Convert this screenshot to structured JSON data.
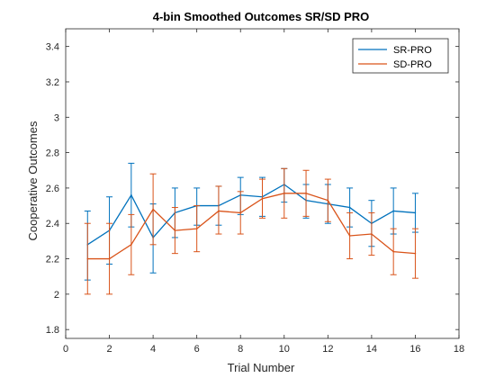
{
  "chart_data": {
    "type": "line",
    "title": "4-bin Smoothed Outcomes SR/SD PRO",
    "xlabel": "Trial Number",
    "ylabel": "Cooperative Outcomes",
    "xlim": [
      0,
      18
    ],
    "ylim": [
      1.75,
      3.5
    ],
    "xticks": [
      0,
      2,
      4,
      6,
      8,
      10,
      12,
      14,
      16,
      18
    ],
    "yticks": [
      1.8,
      2,
      2.2,
      2.4,
      2.6,
      2.8,
      3,
      3.2,
      3.4
    ],
    "xtick_labels": [
      "0",
      "2",
      "4",
      "6",
      "8",
      "10",
      "12",
      "14",
      "16",
      "18"
    ],
    "ytick_labels": [
      "1.8",
      "2",
      "2.2",
      "2.4",
      "2.6",
      "2.8",
      "3",
      "3.2",
      "3.4"
    ],
    "grid": false,
    "legend_position": "top-right",
    "x": [
      1,
      2,
      3,
      4,
      5,
      6,
      7,
      8,
      9,
      10,
      11,
      12,
      13,
      14,
      15,
      16
    ],
    "series": [
      {
        "name": "SR-PRO",
        "color": "#0072BD",
        "values": [
          2.28,
          2.36,
          2.56,
          2.32,
          2.46,
          2.5,
          2.5,
          2.56,
          2.55,
          2.62,
          2.53,
          2.51,
          2.49,
          2.4,
          2.47,
          2.46
        ],
        "err_low": [
          2.08,
          2.17,
          2.38,
          2.12,
          2.32,
          2.39,
          2.39,
          2.45,
          2.44,
          2.52,
          2.43,
          2.4,
          2.38,
          2.27,
          2.34,
          2.35
        ],
        "err_high": [
          2.47,
          2.55,
          2.74,
          2.51,
          2.6,
          2.6,
          2.61,
          2.66,
          2.66,
          2.71,
          2.62,
          2.62,
          2.6,
          2.53,
          2.6,
          2.57
        ]
      },
      {
        "name": "SD-PRO",
        "color": "#D95319",
        "values": [
          2.2,
          2.2,
          2.28,
          2.48,
          2.36,
          2.37,
          2.47,
          2.46,
          2.54,
          2.57,
          2.57,
          2.53,
          2.33,
          2.34,
          2.24,
          2.23
        ],
        "err_low": [
          2.0,
          2.0,
          2.11,
          2.28,
          2.23,
          2.24,
          2.34,
          2.34,
          2.43,
          2.43,
          2.44,
          2.41,
          2.2,
          2.22,
          2.11,
          2.09
        ],
        "err_high": [
          2.4,
          2.4,
          2.45,
          2.68,
          2.49,
          2.5,
          2.61,
          2.58,
          2.65,
          2.71,
          2.7,
          2.65,
          2.46,
          2.46,
          2.37,
          2.37
        ]
      }
    ]
  }
}
